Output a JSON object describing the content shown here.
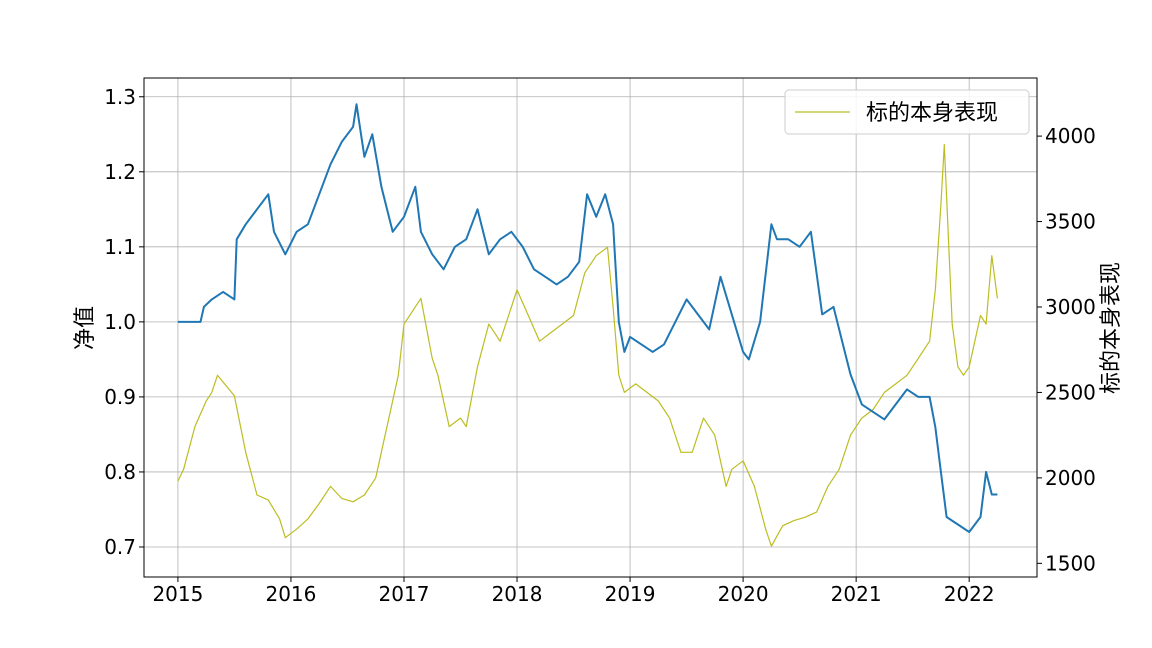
{
  "chart_data": {
    "type": "line",
    "title": "",
    "xlabel": "",
    "ylabel": "净值",
    "ylabel_right": "标的本身表现",
    "xlim": [
      2014.7,
      2022.6
    ],
    "ylim": [
      0.66,
      1.325
    ],
    "ylim_right": [
      1420,
      4340
    ],
    "x_ticks": [
      2015,
      2016,
      2017,
      2018,
      2019,
      2020,
      2021,
      2022
    ],
    "x_tick_labels": [
      "2015",
      "2016",
      "2017",
      "2018",
      "2019",
      "2020",
      "2021",
      "2022"
    ],
    "y_ticks": [
      0.7,
      0.8,
      0.9,
      1.0,
      1.1,
      1.2,
      1.3
    ],
    "y_tick_labels": [
      "0.7",
      "0.8",
      "0.9",
      "1.0",
      "1.1",
      "1.2",
      "1.3"
    ],
    "y_right_ticks": [
      1500,
      2000,
      2500,
      3000,
      3500,
      4000
    ],
    "y_right_tick_labels": [
      "1500",
      "2000",
      "2500",
      "3000",
      "3500",
      "4000"
    ],
    "grid": true,
    "legend_position": "top-right",
    "series": [
      {
        "axis": "left",
        "color": "#1f77b4",
        "x": [
          2015.0,
          2015.2,
          2015.23,
          2015.3,
          2015.4,
          2015.5,
          2015.52,
          2015.6,
          2015.7,
          2015.8,
          2015.85,
          2015.95,
          2016.05,
          2016.15,
          2016.25,
          2016.35,
          2016.45,
          2016.55,
          2016.58,
          2016.65,
          2016.72,
          2016.8,
          2016.9,
          2017.0,
          2017.1,
          2017.15,
          2017.25,
          2017.35,
          2017.45,
          2017.55,
          2017.65,
          2017.75,
          2017.85,
          2017.95,
          2018.05,
          2018.15,
          2018.25,
          2018.35,
          2018.45,
          2018.55,
          2018.62,
          2018.7,
          2018.78,
          2018.85,
          2018.9,
          2018.95,
          2019.0,
          2019.1,
          2019.2,
          2019.3,
          2019.4,
          2019.5,
          2019.6,
          2019.7,
          2019.8,
          2019.9,
          2020.0,
          2020.05,
          2020.15,
          2020.25,
          2020.3,
          2020.4,
          2020.5,
          2020.6,
          2020.7,
          2020.8,
          2020.9,
          2020.95,
          2021.05,
          2021.15,
          2021.25,
          2021.35,
          2021.45,
          2021.55,
          2021.65,
          2021.7,
          2021.75,
          2021.8,
          2021.9,
          2022.0,
          2022.1,
          2022.15,
          2022.2,
          2022.25
        ],
        "values": [
          1.0,
          1.0,
          1.02,
          1.03,
          1.04,
          1.03,
          1.11,
          1.13,
          1.15,
          1.17,
          1.12,
          1.09,
          1.12,
          1.13,
          1.17,
          1.21,
          1.24,
          1.26,
          1.29,
          1.22,
          1.25,
          1.18,
          1.12,
          1.14,
          1.18,
          1.12,
          1.09,
          1.07,
          1.1,
          1.11,
          1.15,
          1.09,
          1.11,
          1.12,
          1.1,
          1.07,
          1.06,
          1.05,
          1.06,
          1.08,
          1.17,
          1.14,
          1.17,
          1.13,
          1.0,
          0.96,
          0.98,
          0.97,
          0.96,
          0.97,
          1.0,
          1.03,
          1.01,
          0.99,
          1.06,
          1.01,
          0.96,
          0.95,
          1.0,
          1.13,
          1.11,
          1.11,
          1.1,
          1.12,
          1.01,
          1.02,
          0.96,
          0.93,
          0.89,
          0.88,
          0.87,
          0.89,
          0.91,
          0.9,
          0.9,
          0.86,
          0.8,
          0.74,
          0.73,
          0.72,
          0.74,
          0.8,
          0.77,
          0.77
        ]
      },
      {
        "axis": "right",
        "name": "标的本身表现",
        "color": "#bcbd22",
        "x": [
          2015.0,
          2015.05,
          2015.15,
          2015.25,
          2015.3,
          2015.35,
          2015.45,
          2015.5,
          2015.6,
          2015.7,
          2015.8,
          2015.9,
          2015.95,
          2016.05,
          2016.15,
          2016.25,
          2016.35,
          2016.45,
          2016.55,
          2016.65,
          2016.75,
          2016.85,
          2016.95,
          2017.0,
          2017.08,
          2017.15,
          2017.25,
          2017.3,
          2017.4,
          2017.5,
          2017.55,
          2017.65,
          2017.75,
          2017.85,
          2017.95,
          2018.0,
          2018.1,
          2018.2,
          2018.3,
          2018.4,
          2018.5,
          2018.6,
          2018.7,
          2018.8,
          2018.85,
          2018.9,
          2018.95,
          2019.05,
          2019.15,
          2019.25,
          2019.35,
          2019.45,
          2019.55,
          2019.65,
          2019.75,
          2019.85,
          2019.9,
          2020.0,
          2020.1,
          2020.2,
          2020.25,
          2020.35,
          2020.45,
          2020.55,
          2020.65,
          2020.75,
          2020.85,
          2020.95,
          2021.05,
          2021.15,
          2021.25,
          2021.35,
          2021.45,
          2021.55,
          2021.65,
          2021.7,
          2021.75,
          2021.78,
          2021.85,
          2021.9,
          2021.95,
          2022.0,
          2022.05,
          2022.1,
          2022.15,
          2022.2,
          2022.25
        ],
        "values": [
          1980,
          2050,
          2300,
          2450,
          2500,
          2600,
          2520,
          2480,
          2150,
          1900,
          1870,
          1760,
          1650,
          1700,
          1760,
          1850,
          1950,
          1880,
          1860,
          1900,
          2000,
          2300,
          2600,
          2900,
          2980,
          3050,
          2700,
          2600,
          2300,
          2350,
          2300,
          2650,
          2900,
          2800,
          3000,
          3100,
          2950,
          2800,
          2850,
          2900,
          2950,
          3200,
          3300,
          3350,
          3000,
          2600,
          2500,
          2550,
          2500,
          2450,
          2350,
          2150,
          2150,
          2350,
          2250,
          1950,
          2050,
          2100,
          1950,
          1700,
          1600,
          1720,
          1750,
          1770,
          1800,
          1950,
          2050,
          2250,
          2350,
          2400,
          2500,
          2550,
          2600,
          2700,
          2800,
          3100,
          3600,
          3950,
          2900,
          2650,
          2600,
          2650,
          2800,
          2950,
          2900,
          3300,
          3050
        ]
      }
    ]
  }
}
